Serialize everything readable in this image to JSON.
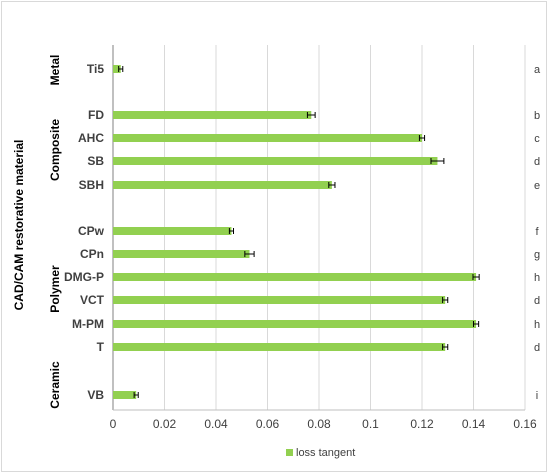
{
  "chart_data": {
    "type": "bar",
    "orientation": "horizontal",
    "ylabel": "CAD/CAM restorative material",
    "xlim": [
      0,
      0.16
    ],
    "x_ticks": [
      "0",
      "0.02",
      "0.04",
      "0.06",
      "0.08",
      "0.1",
      "0.12",
      "0.14",
      "0.16"
    ],
    "grid": "vertical",
    "legend": {
      "position": "bottom",
      "entries": [
        "loss tangent"
      ]
    },
    "series": [
      {
        "name": "loss tangent",
        "color": "#92d050"
      }
    ],
    "groups": [
      {
        "name": "Metal",
        "items": [
          {
            "category": "Ti5",
            "value": 0.003,
            "error": 0.0008,
            "letter": "a"
          }
        ]
      },
      {
        "name": "Composite",
        "items": [
          {
            "category": "FD",
            "value": 0.077,
            "error": 0.0015,
            "letter": "b"
          },
          {
            "category": "AHC",
            "value": 0.12,
            "error": 0.001,
            "letter": "c"
          },
          {
            "category": "SB",
            "value": 0.126,
            "error": 0.0025,
            "letter": "d"
          },
          {
            "category": "SBH",
            "value": 0.085,
            "error": 0.0012,
            "letter": "e"
          }
        ]
      },
      {
        "name": "Polymer",
        "items": [
          {
            "category": "CPw",
            "value": 0.046,
            "error": 0.0008,
            "letter": "f"
          },
          {
            "category": "CPn",
            "value": 0.053,
            "error": 0.0018,
            "letter": "g"
          },
          {
            "category": "DMG-P",
            "value": 0.141,
            "error": 0.0012,
            "letter": "h"
          },
          {
            "category": "VCT",
            "value": 0.129,
            "error": 0.001,
            "letter": "d"
          },
          {
            "category": "M-PM",
            "value": 0.141,
            "error": 0.001,
            "letter": "h"
          },
          {
            "category": "T",
            "value": 0.129,
            "error": 0.001,
            "letter": "d"
          }
        ]
      },
      {
        "name": "Ceramic",
        "items": [
          {
            "category": "VB",
            "value": 0.009,
            "error": 0.0008,
            "letter": "i"
          }
        ]
      }
    ]
  }
}
